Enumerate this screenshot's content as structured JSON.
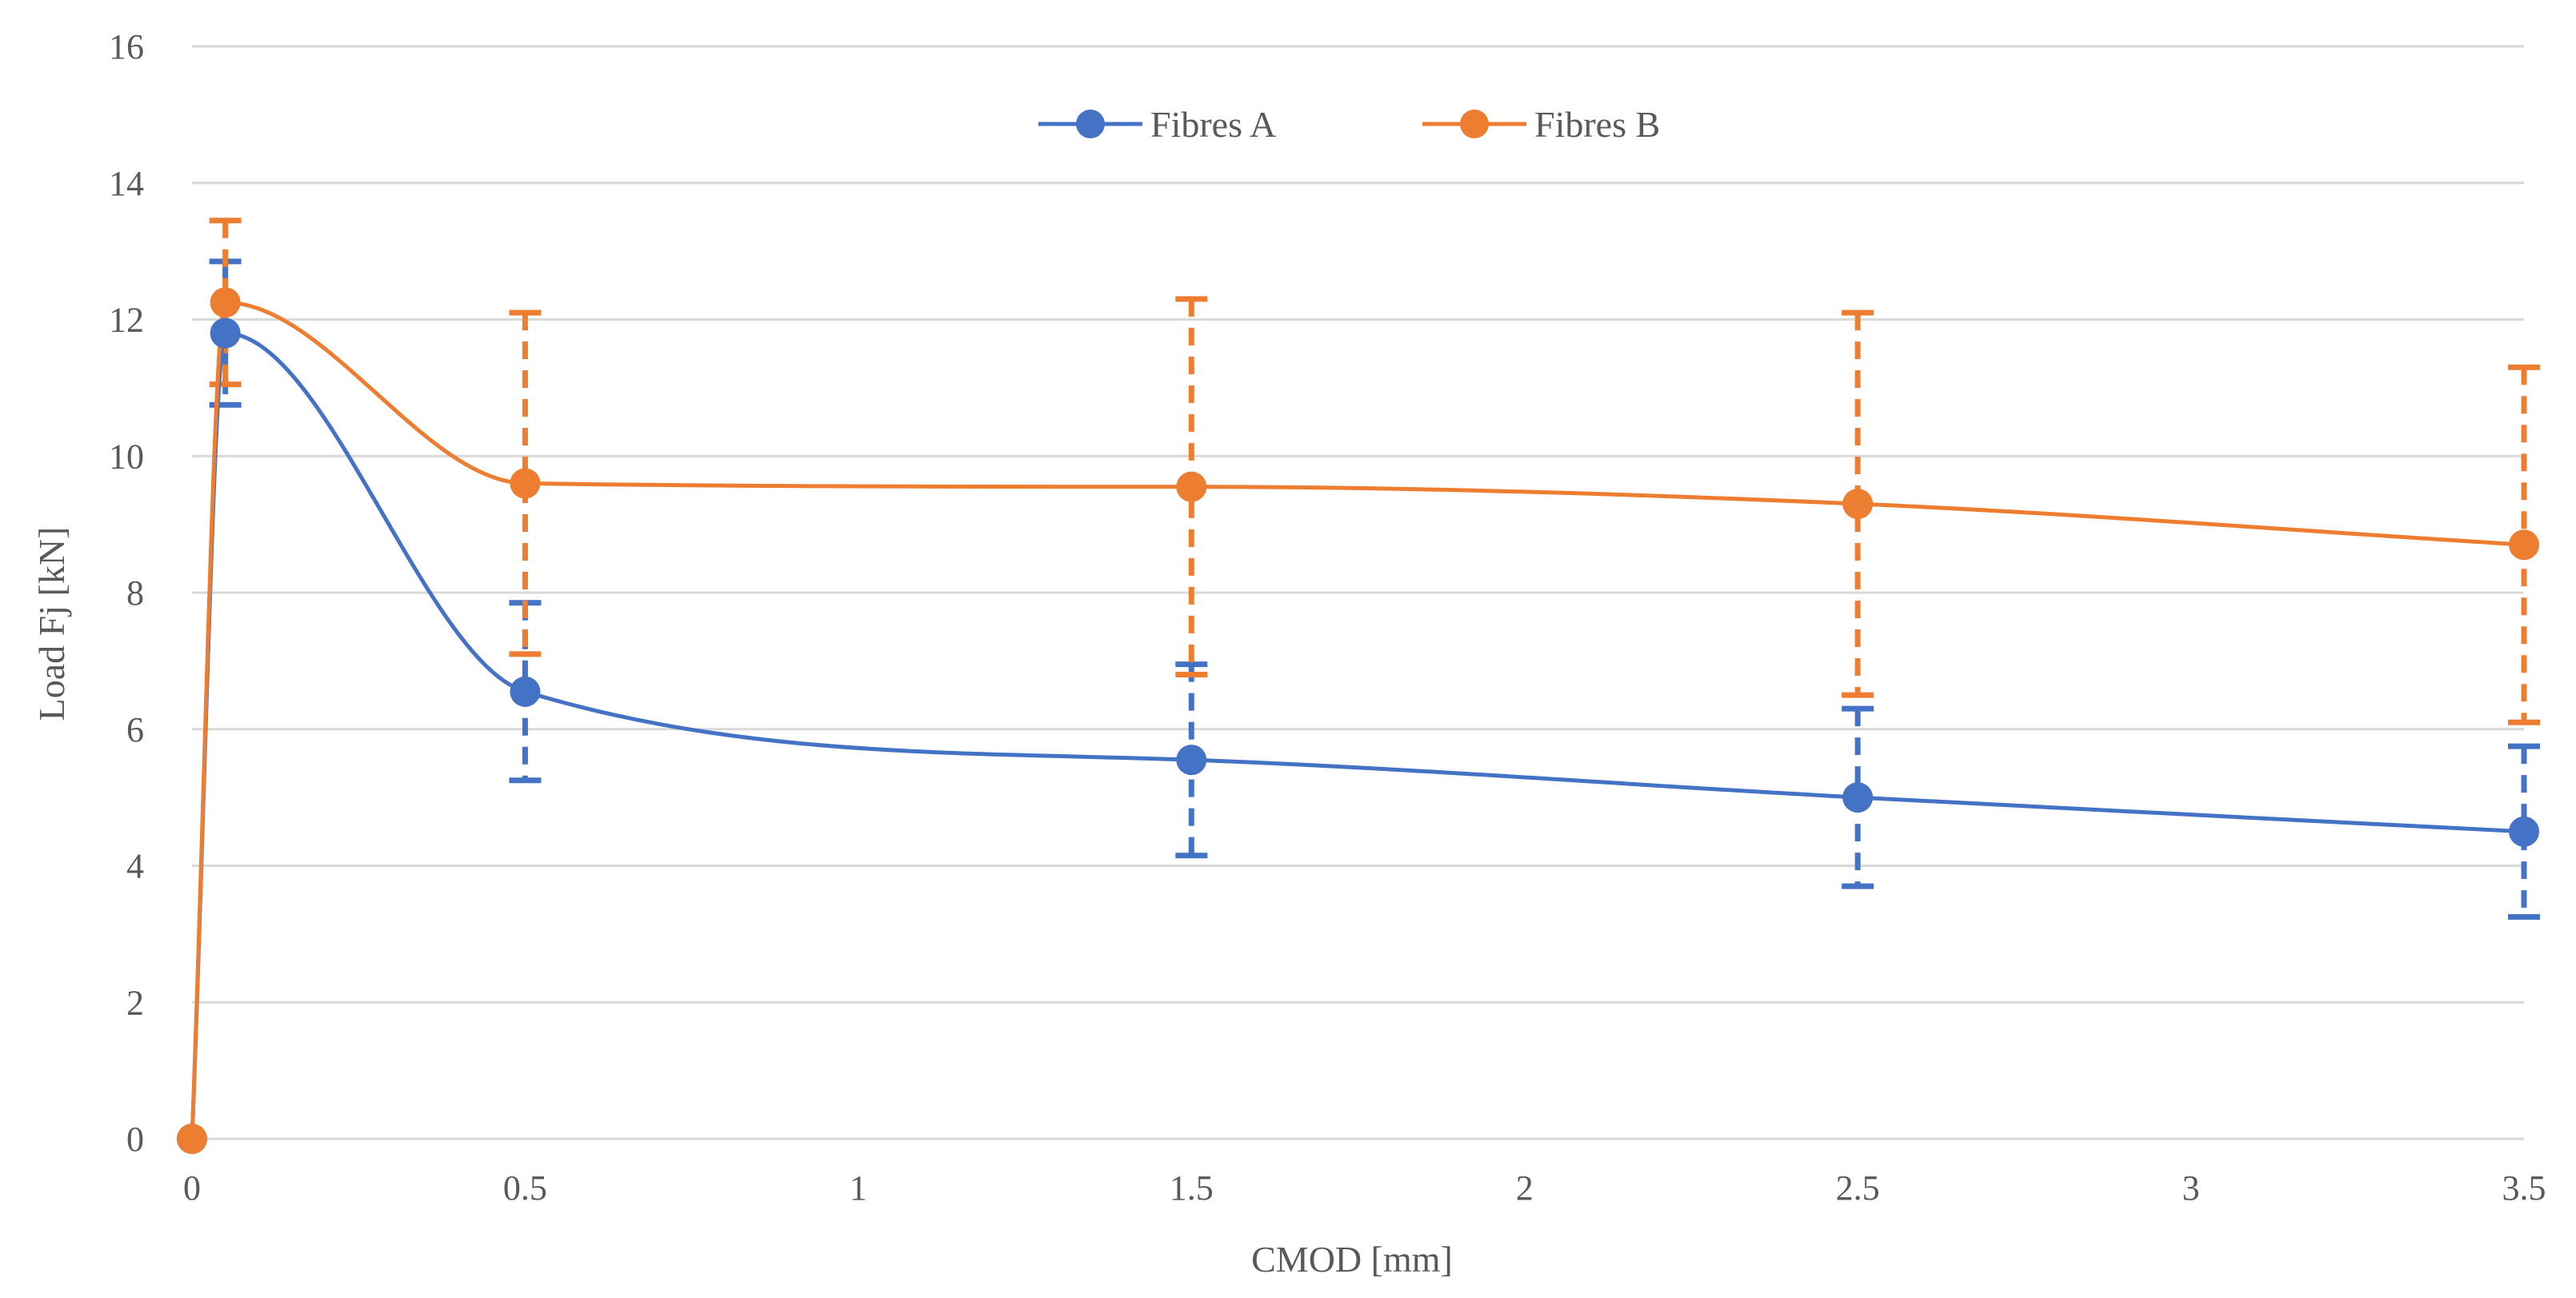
{
  "chart_data": {
    "type": "line",
    "title": "",
    "xlabel": "CMOD [mm]",
    "ylabel": "Load Fj [kN]",
    "xlim": [
      0,
      3.5
    ],
    "ylim": [
      0,
      16
    ],
    "x_ticks": [
      0,
      0.5,
      1,
      1.5,
      2,
      2.5,
      3,
      3.5
    ],
    "y_ticks": [
      0,
      2,
      4,
      6,
      8,
      10,
      12,
      14,
      16
    ],
    "grid": true,
    "legend_position": "top-center",
    "series": [
      {
        "name": "Fibres A",
        "color": "#4472C4",
        "x": [
          0,
          0.05,
          0.5,
          1.5,
          2.5,
          3.5
        ],
        "y": [
          0,
          11.8,
          6.55,
          5.55,
          5.0,
          4.5
        ],
        "error": [
          0,
          1.05,
          1.3,
          1.4,
          1.3,
          1.25
        ]
      },
      {
        "name": "Fibres B",
        "color": "#ED7D31",
        "x": [
          0,
          0.05,
          0.5,
          1.5,
          2.5,
          3.5
        ],
        "y": [
          0,
          12.25,
          9.6,
          9.55,
          9.3,
          8.7
        ],
        "error": [
          0,
          1.2,
          2.5,
          2.75,
          2.8,
          2.6
        ]
      }
    ]
  }
}
